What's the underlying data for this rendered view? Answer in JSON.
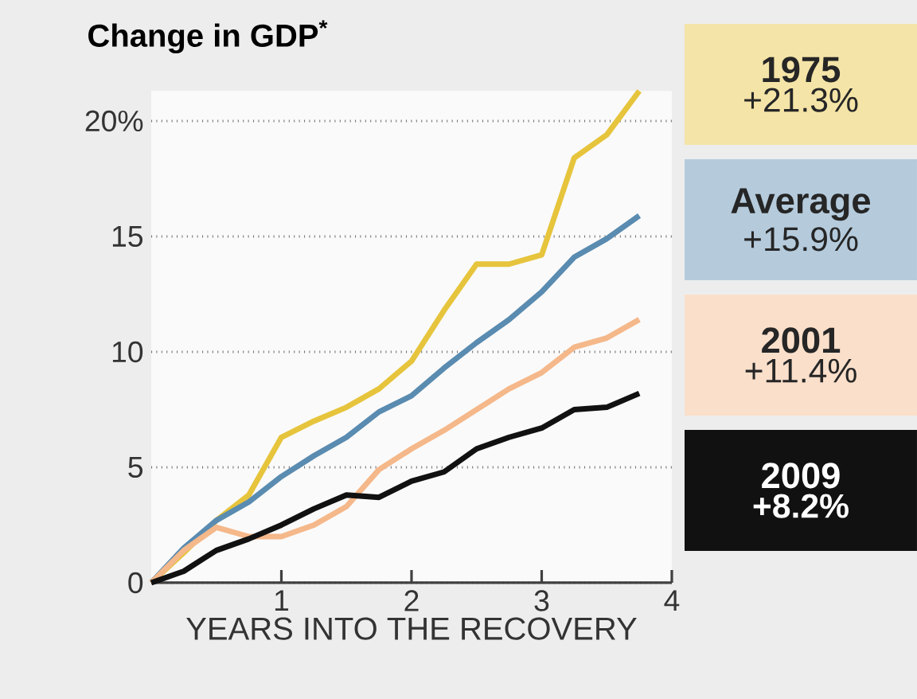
{
  "chart_data": {
    "type": "line",
    "title": "Change in GDP$^{*}$",
    "xlabel": "YEARS INTO THE RECOVERY",
    "x": [
      0,
      0.25,
      0.5,
      0.75,
      1,
      1.25,
      1.5,
      1.75,
      2,
      2.25,
      2.5,
      2.75,
      3,
      3.25,
      3.5,
      3.75
    ],
    "series": [
      {
        "name": "1975",
        "color": "#e6c43c",
        "values": [
          0,
          1.3,
          2.7,
          3.8,
          6.3,
          7.0,
          7.6,
          8.4,
          9.6,
          11.8,
          13.8,
          13.8,
          14.2,
          18.4,
          19.4,
          21.3
        ]
      },
      {
        "name": "Average",
        "color": "#5a8bb0",
        "values": [
          0,
          1.5,
          2.7,
          3.5,
          4.6,
          5.5,
          6.3,
          7.4,
          8.1,
          9.3,
          10.4,
          11.4,
          12.6,
          14.1,
          14.9,
          15.9
        ]
      },
      {
        "name": "2001",
        "color": "#f5b88a",
        "values": [
          0,
          1.4,
          2.4,
          2.0,
          2.0,
          2.5,
          3.3,
          4.9,
          5.8,
          6.6,
          7.5,
          8.4,
          9.1,
          10.2,
          10.6,
          11.4
        ]
      },
      {
        "name": "2009",
        "color": "#111111",
        "values": [
          0,
          0.5,
          1.4,
          1.9,
          2.5,
          3.2,
          3.8,
          3.7,
          4.4,
          4.8,
          5.8,
          6.3,
          6.7,
          7.5,
          7.6,
          8.2
        ]
      }
    ],
    "annotations": [
      "+21.3%",
      "+15.9%",
      "+11.4%",
      "+8.2%"
    ],
    "xlim": [
      0,
      4
    ],
    "xticks": [
      1,
      2,
      3,
      4
    ],
    "ylim": [
      0,
      21.3
    ],
    "yticks": [
      0,
      5,
      10,
      15,
      {
        "value": 20,
        "label": "20%"
      }
    ],
    "grid": "y",
    "marker": "none",
    "line_style": "solid"
  }
}
